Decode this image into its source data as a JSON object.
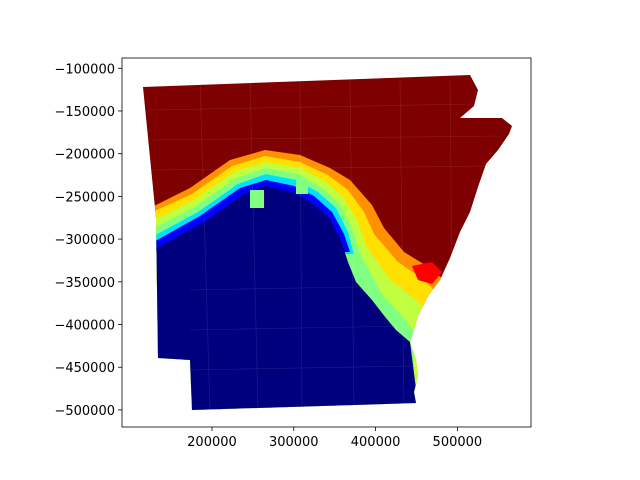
{
  "chart_data": {
    "type": "heatmap",
    "title": "",
    "xlabel": "",
    "ylabel": "",
    "xlim": [
      90000,
      590000
    ],
    "ylim": [
      -520000,
      -88000
    ],
    "x_ticks": [
      {
        "value": 200000,
        "label": "200000"
      },
      {
        "value": 300000,
        "label": "300000"
      },
      {
        "value": 400000,
        "label": "400000"
      },
      {
        "value": 500000,
        "label": "500000"
      }
    ],
    "y_ticks": [
      {
        "value": -100000,
        "label": "−100000"
      },
      {
        "value": -150000,
        "label": "−150000"
      },
      {
        "value": -200000,
        "label": "−200000"
      },
      {
        "value": -250000,
        "label": "−250000"
      },
      {
        "value": -300000,
        "label": "−300000"
      },
      {
        "value": -350000,
        "label": "−350000"
      },
      {
        "value": -400000,
        "label": "−400000"
      },
      {
        "value": -450000,
        "label": "−450000"
      },
      {
        "value": -500000,
        "label": "−500000"
      }
    ],
    "colormap": "jet",
    "grid": false,
    "legend": "none",
    "colors": {
      "dark_blue": "#00007f",
      "blue": "#0000ff",
      "azure": "#0080ff",
      "cyan": "#00e0ff",
      "aqua_green": "#40ffb8",
      "light_green": "#80ff80",
      "yellow_green": "#c0ff40",
      "yellow": "#ffe000",
      "orange": "#ff9000",
      "orange_red": "#ff5000",
      "red": "#ff0000",
      "dark_red": "#7f0000"
    }
  }
}
